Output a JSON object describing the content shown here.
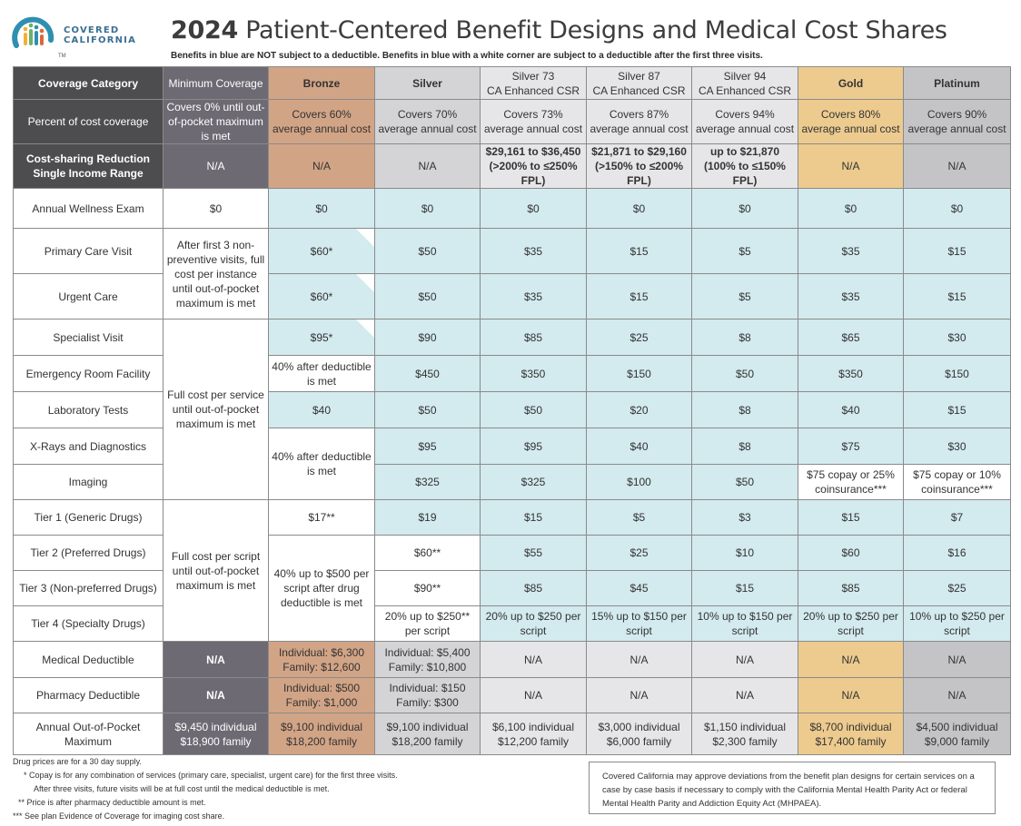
{
  "logo": {
    "line1": "COVERED",
    "line2": "CALIFORNIA",
    "tm": "TM"
  },
  "header": {
    "title_year": "2024",
    "title_rest": " Patient-Centered Benefit Designs and Medical Cost Shares",
    "subtitle": "Benefits in blue are NOT subject to a deductible. Benefits in blue with a white corner are subject to a deductible after the first three visits."
  },
  "colors": {
    "dark": "#4d4d4f",
    "minimum": "#6d6a73",
    "bronze": "#d2a486",
    "silver": "#d4d4d6",
    "csr": "#e6e6e8",
    "gold": "#edcb8f",
    "platinum": "#c4c4c6",
    "blue": "#d3eaee"
  },
  "table": {
    "columns": [
      "Coverage Category",
      "Minimum Coverage",
      "Bronze",
      "Silver",
      "Silver 73",
      "Silver 87",
      "Silver 94",
      "Gold",
      "Platinum"
    ],
    "csr_sub": "CA Enhanced CSR",
    "percent_row": {
      "label": "Percent of cost coverage",
      "minimum": "Covers 0% until out-of-pocket maximum is met",
      "bronze": "Covers 60% average annual cost",
      "silver": "Covers 70% average annual cost",
      "s73": "Covers 73% average annual cost",
      "s87": "Covers 87% average annual cost",
      "s94": "Covers 94% average annual cost",
      "gold": "Covers 80% average annual cost",
      "platinum": "Covers 90% average annual cost"
    },
    "csr_row": {
      "label": "Cost-sharing Reduction Single Income Range",
      "minimum": "N/A",
      "bronze": "N/A",
      "silver": "N/A",
      "s73": "$29,161 to $36,450 (>200% to ≤250% FPL)",
      "s87": "$21,871 to $29,160 (>150% to ≤200% FPL)",
      "s94": "up to $21,870 (100% to ≤150% FPL)",
      "gold": "N/A",
      "platinum": "N/A"
    },
    "rows": {
      "wellness": {
        "label": "Annual Wellness Exam",
        "minimum": "$0",
        "bronze": "$0",
        "silver": "$0",
        "s73": "$0",
        "s87": "$0",
        "s94": "$0",
        "gold": "$0",
        "platinum": "$0"
      },
      "primary": {
        "label": "Primary Care Visit",
        "bronze": "$60*",
        "silver": "$50",
        "s73": "$35",
        "s87": "$15",
        "s94": "$5",
        "gold": "$35",
        "platinum": "$15"
      },
      "urgent": {
        "label": "Urgent Care",
        "bronze": "$60*",
        "silver": "$50",
        "s73": "$35",
        "s87": "$15",
        "s94": "$5",
        "gold": "$35",
        "platinum": "$15"
      },
      "specialist": {
        "label": "Specialist Visit",
        "bronze": "$95*",
        "silver": "$90",
        "s73": "$85",
        "s87": "$25",
        "s94": "$8",
        "gold": "$65",
        "platinum": "$30"
      },
      "er": {
        "label": "Emergency Room Facility",
        "bronze": "40% after deductible is met",
        "silver": "$450",
        "s73": "$350",
        "s87": "$150",
        "s94": "$50",
        "gold": "$350",
        "platinum": "$150"
      },
      "lab": {
        "label": "Laboratory Tests",
        "bronze": "$40",
        "silver": "$50",
        "s73": "$50",
        "s87": "$20",
        "s94": "$8",
        "gold": "$40",
        "platinum": "$15"
      },
      "xray": {
        "label": "X-Rays and Diagnostics",
        "silver": "$95",
        "s73": "$95",
        "s87": "$40",
        "s94": "$8",
        "gold": "$75",
        "platinum": "$30"
      },
      "imaging": {
        "label": "Imaging",
        "silver": "$325",
        "s73": "$325",
        "s87": "$100",
        "s94": "$50",
        "gold": "$75 copay or 25% coinsurance***",
        "platinum": "$75 copay or 10% coinsurance***"
      },
      "tier1": {
        "label": "Tier 1 (Generic Drugs)",
        "bronze": "$17**",
        "silver": "$19",
        "s73": "$15",
        "s87": "$5",
        "s94": "$3",
        "gold": "$15",
        "platinum": "$7"
      },
      "tier2": {
        "label": "Tier 2 (Preferred Drugs)",
        "silver": "$60**",
        "s73": "$55",
        "s87": "$25",
        "s94": "$10",
        "gold": "$60",
        "platinum": "$16"
      },
      "tier3": {
        "label": "Tier 3 (Non-preferred Drugs)",
        "silver": "$90**",
        "s73": "$85",
        "s87": "$45",
        "s94": "$15",
        "gold": "$85",
        "platinum": "$25"
      },
      "tier4": {
        "label": "Tier 4 (Specialty Drugs)",
        "silver": "20% up to $250** per script",
        "s73": "20% up to $250 per script",
        "s87": "15% up to $150 per script",
        "s94": "10% up to $150 per script",
        "gold": "20% up to $250 per script",
        "platinum": "10% up to $250 per script"
      },
      "med_ded": {
        "label": "Medical Deductible",
        "minimum": "N/A",
        "bronze": "Individual: $6,300 Family: $12,600",
        "silver": "Individual: $5,400 Family: $10,800",
        "s73": "N/A",
        "s87": "N/A",
        "s94": "N/A",
        "gold": "N/A",
        "platinum": "N/A"
      },
      "rx_ded": {
        "label": "Pharmacy Deductible",
        "minimum": "N/A",
        "bronze": "Individual: $500 Family: $1,000",
        "silver": "Individual: $150 Family: $300",
        "s73": "N/A",
        "s87": "N/A",
        "s94": "N/A",
        "gold": "N/A",
        "platinum": "N/A"
      },
      "oop": {
        "label": "Annual Out-of-Pocket Maximum",
        "minimum": "$9,450 individual $18,900 family",
        "bronze": "$9,100 individual $18,200 family",
        "silver": "$9,100 individual $18,200 family",
        "s73": "$6,100 individual $12,200 family",
        "s87": "$3,000 individual $6,000 family",
        "s94": "$1,150 individual $2,300 family",
        "gold": "$8,700 individual $17,400 family",
        "platinum": "$4,500 individual $9,000 family"
      }
    },
    "min_merged": {
      "visits": "After first 3 non-preventive visits, full cost per instance until out-of-pocket maximum is met",
      "services": "Full cost per service until out-of-pocket maximum is met",
      "drugs": "Full cost per script until out-of-pocket maximum is met"
    },
    "bronze_merged": {
      "xray_imaging": "40% after deductible is met",
      "drugs": "40% up to $500 per script after drug deductible is met"
    }
  },
  "footnotes": [
    "Drug prices are for a 30 day supply.",
    "* Copay is for any combination of services (primary care, specialist, urgent care) for the first three visits.",
    "After three visits, future visits will be at full cost until the medical deductible is met.",
    "** Price is after pharmacy deductible amount is met.",
    "*** See plan Evidence of Coverage for imaging cost share."
  ],
  "disclaimer": "Covered California may approve deviations from the benefit plan designs for certain services on a case by case basis if necessary to comply with the California Mental Health Parity Act or federal Mental Health Parity and Addiction Equity Act (MHPAEA)."
}
